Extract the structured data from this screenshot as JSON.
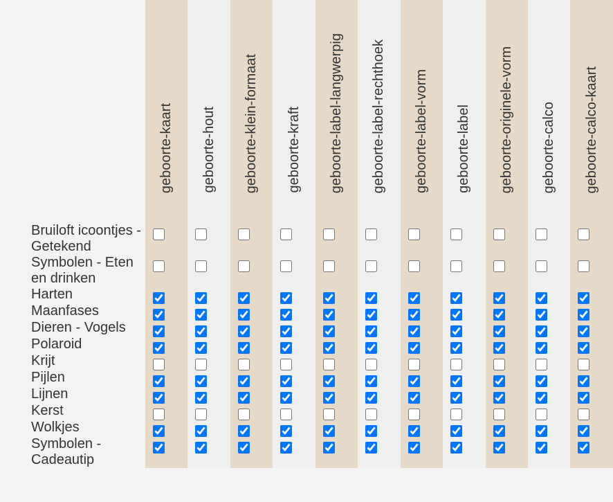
{
  "columns": [
    "geboorte-kaart",
    "geboorte-hout",
    "geboorte-klein-formaat",
    "geboorte-kraft",
    "geboorte-label-langwerpig",
    "geboorte-label-rechthoek",
    "geboorte-label-vorm",
    "geboorte-label",
    "geboorte-originele-vorm",
    "geboorte-calco",
    "geboorte-calco-kaart"
  ],
  "rows": [
    {
      "label": "Bruiloft icoontjes - Getekend",
      "checked": [
        false,
        false,
        false,
        false,
        false,
        false,
        false,
        false,
        false,
        false,
        false
      ]
    },
    {
      "label": "Symbolen - Eten en drinken",
      "checked": [
        false,
        false,
        false,
        false,
        false,
        false,
        false,
        false,
        false,
        false,
        false
      ]
    },
    {
      "label": "Harten",
      "checked": [
        true,
        true,
        true,
        true,
        true,
        true,
        true,
        true,
        true,
        true,
        true
      ]
    },
    {
      "label": "Maanfases",
      "checked": [
        true,
        true,
        true,
        true,
        true,
        true,
        true,
        true,
        true,
        true,
        true
      ]
    },
    {
      "label": "Dieren - Vogels",
      "checked": [
        true,
        true,
        true,
        true,
        true,
        true,
        true,
        true,
        true,
        true,
        true
      ]
    },
    {
      "label": "Polaroid",
      "checked": [
        true,
        true,
        true,
        true,
        true,
        true,
        true,
        true,
        true,
        true,
        true
      ]
    },
    {
      "label": "Krijt",
      "checked": [
        false,
        false,
        false,
        false,
        false,
        false,
        false,
        false,
        false,
        false,
        false
      ]
    },
    {
      "label": "Pijlen",
      "checked": [
        true,
        true,
        true,
        true,
        true,
        true,
        true,
        true,
        true,
        true,
        true
      ]
    },
    {
      "label": "Lijnen",
      "checked": [
        true,
        true,
        true,
        true,
        true,
        true,
        true,
        true,
        true,
        true,
        true
      ]
    },
    {
      "label": "Kerst",
      "checked": [
        false,
        false,
        false,
        false,
        false,
        false,
        false,
        false,
        false,
        false,
        false
      ]
    },
    {
      "label": "Wolkjes",
      "checked": [
        true,
        true,
        true,
        true,
        true,
        true,
        true,
        true,
        true,
        true,
        true
      ]
    },
    {
      "label": "Symbolen - Cadeautip",
      "checked": [
        true,
        true,
        true,
        true,
        true,
        true,
        true,
        true,
        true,
        true,
        true
      ]
    }
  ]
}
